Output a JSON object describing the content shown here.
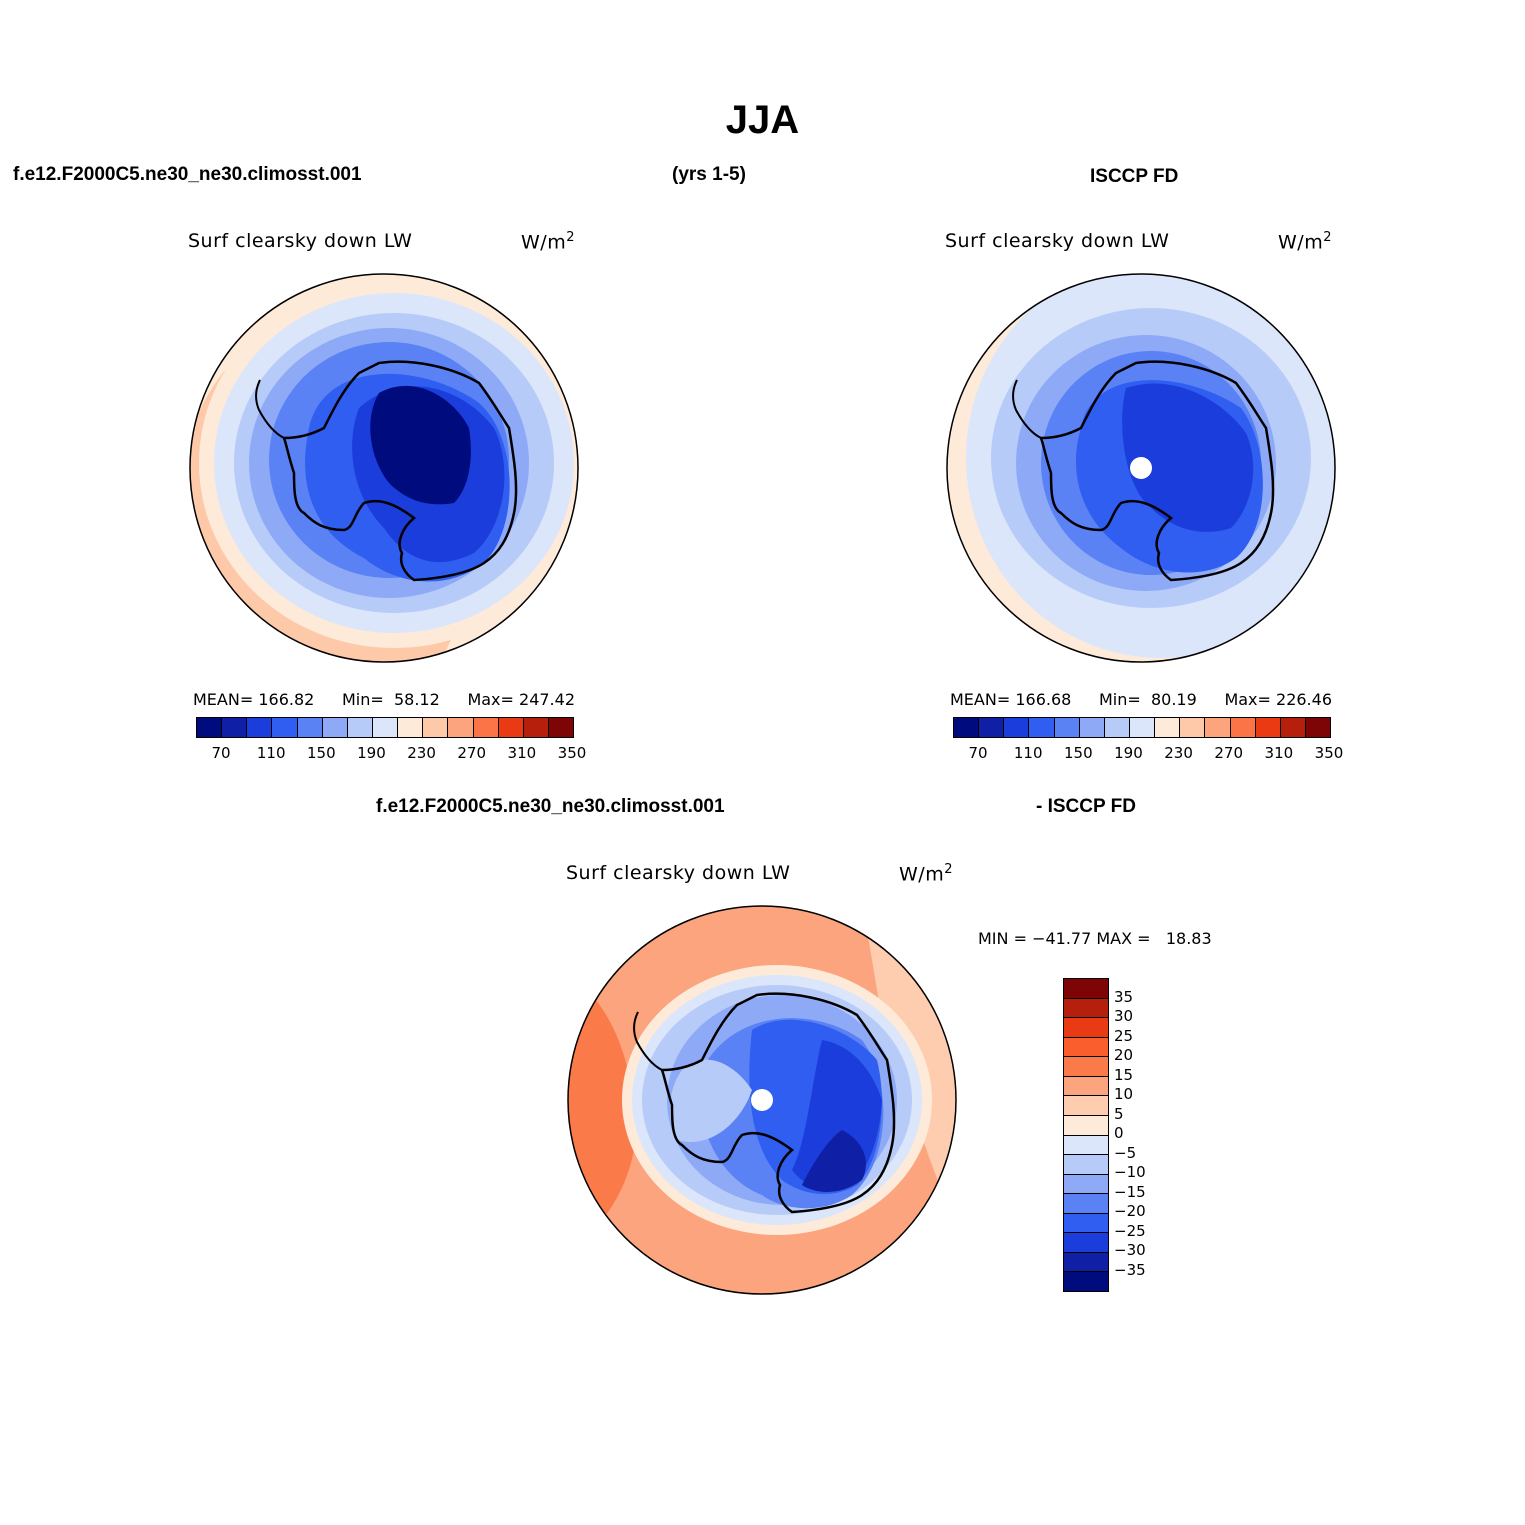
{
  "figure": {
    "title": "JJA",
    "case_label": "f.e12.F2000C5.ne30_ne30.climosst.001",
    "years_label": "(yrs 1-5)",
    "obs_label": "ISCCP FD",
    "diff_case_label": "f.e12.F2000C5.ne30_ne30.climosst.001",
    "diff_obs_label": "- ISCCP FD"
  },
  "panels": [
    {
      "variable": "Surf clearsky down LW",
      "units_base": "W/m",
      "units_sup": "2",
      "stats": {
        "mean_label": "MEAN=",
        "mean": "166.82",
        "min_label": "Min=",
        "min": "58.12",
        "max_label": "Max=",
        "max": "247.42"
      },
      "ticks": [
        "70",
        "110",
        "150",
        "190",
        "230",
        "270",
        "310",
        "350"
      ]
    },
    {
      "variable": "Surf clearsky down LW",
      "units_base": "W/m",
      "units_sup": "2",
      "stats": {
        "mean_label": "MEAN=",
        "mean": "166.68",
        "min_label": "Min=",
        "min": "80.19",
        "max_label": "Max=",
        "max": "226.46"
      },
      "ticks": [
        "70",
        "110",
        "150",
        "190",
        "230",
        "270",
        "310",
        "350"
      ]
    },
    {
      "variable": "Surf clearsky down LW",
      "units_base": "W/m",
      "units_sup": "2",
      "stats": {
        "text": "MIN = −41.77 MAX =   18.83"
      },
      "ticks": [
        "35",
        "30",
        "25",
        "20",
        "15",
        "10",
        "5",
        "0",
        "−5",
        "−10",
        "−15",
        "−20",
        "−25",
        "−30",
        "−35"
      ]
    }
  ],
  "colors": {
    "abs_scale": [
      "#000c7d",
      "#0f1fa6",
      "#1b3ddc",
      "#2f5ef0",
      "#5a82f5",
      "#8eaaf7",
      "#b7cbf9",
      "#dbe6fb",
      "#feead8",
      "#fdc9a8",
      "#fca47e",
      "#fb7447",
      "#e93a14",
      "#b51f0b",
      "#7d0505"
    ],
    "diff_scale": [
      "#7d0505",
      "#b51f0b",
      "#e93a14",
      "#fb5e2d",
      "#fb7a4a",
      "#fca47e",
      "#fecdb0",
      "#feead8",
      "#dbe6fb",
      "#b7cbf9",
      "#8eaaf7",
      "#5a82f5",
      "#2f5ef0",
      "#1b3ddc",
      "#0f1fa6",
      "#000c7d"
    ]
  }
}
